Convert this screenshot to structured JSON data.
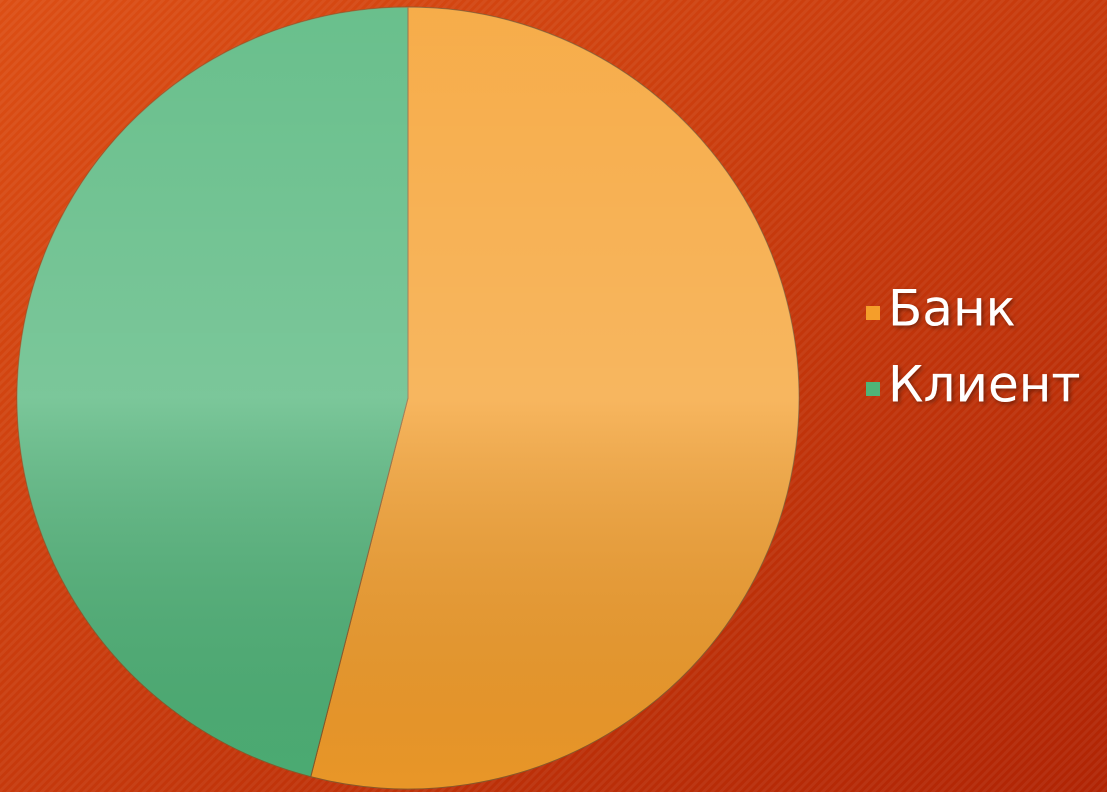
{
  "chart_data": {
    "type": "pie",
    "categories": [
      "Банк",
      "Клиент"
    ],
    "values": [
      54,
      46
    ],
    "colors": [
      "#f59e2a",
      "#4fb478"
    ],
    "legend": "right"
  }
}
